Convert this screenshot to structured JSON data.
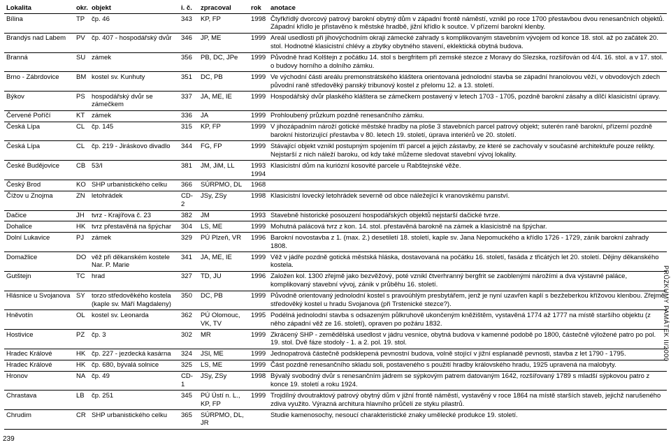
{
  "pageNumber": "239",
  "sideLabel": "PRŮZKUMY PAMÁTEK II/2000",
  "columns": [
    "Lokalita",
    "okr.",
    "objekt",
    "i. č.",
    "zpracoval",
    "rok",
    "anotace"
  ],
  "rows": [
    {
      "lokalita": "Bílina",
      "okr": "TP",
      "objekt": "čp. 46",
      "ic": "343",
      "zprac": "KP, FP",
      "rok": "1998",
      "anot": "Čtyřkřídlý dvorcový patrový barokní obytný dům v západní frontě náměstí, vznikl po roce 1700 přestavbou dvou renesančních objektů. Západní křídlo je přistavěno k městské hradbě, jižní křídlo k soutce. V přízemí barokní klenby."
    },
    {
      "lokalita": "Brandýs nad Labem",
      "okr": "PV",
      "objekt": "čp. 407 - hospodářský dvůr",
      "ic": "346",
      "zprac": "JP, ME",
      "rok": "1999",
      "anot": "Areál usedlosti při jihovýchodním okraji zámecké zahrady s komplikovaným stavebním vývojem od konce 18. stol. až po začátek 20. stol. Hodnotné klasicistní chlévy a zbytky obytného stavení, eklektická obytná budova."
    },
    {
      "lokalita": "Branná",
      "okr": "SU",
      "objekt": "zámek",
      "ic": "356",
      "zprac": "PB, DC, JPe",
      "rok": "1999",
      "anot": "Původně hrad Kolštejn z počátku 14. stol s bergfritem při zemské stezce z Moravy do Slezska, rozšiřován od 4/4. 16. stol. a v 17. stol. o budovy horního a dolního zámku."
    },
    {
      "lokalita": "Brno - Zábrdovice",
      "okr": "BM",
      "objekt": "kostel sv. Kunhuty",
      "ic": "351",
      "zprac": "DC, PB",
      "rok": "1999",
      "anot": "Ve východní části areálu premonstrátského kláštera orientovaná jednolodní stavba se západní hranolovou věží, v obvodových zdech původní raně středověký panský tribunový kostel z přelomu 12. a 13. století."
    },
    {
      "lokalita": "Býkov",
      "okr": "PS",
      "objekt": "hospodářský dvůr se zámečkem",
      "ic": "337",
      "zprac": "JA, ME, IE",
      "rok": "1999",
      "anot": "Hospodářský dvůr plaského kláštera se zámečkem postavený v letech 1703 - 1705, pozdně barokní zásahy a dílčí klasicistní úpravy."
    },
    {
      "lokalita": "Červené Poříčí",
      "okr": "KT",
      "objekt": "zámek",
      "ic": "336",
      "zprac": "JA",
      "rok": "1999",
      "anot": "Prohloubený průzkum pozdně renesančního zámku."
    },
    {
      "lokalita": "Česká Lípa",
      "okr": "CL",
      "objekt": "čp. 145",
      "ic": "315",
      "zprac": "KP, FP",
      "rok": "1999",
      "anot": "V jihozápadním nároží gotické městské hradby na ploše 3 stavebních parcel patrový objekt; suterén raně barokní, přízemí pozdně barokní historizující přestavba v 80. letech 19. století, úprava interiérů ve 20. století."
    },
    {
      "lokalita": "Česká Lípa",
      "okr": "CL",
      "objekt": "čp. 219 - Jiráskovo divadlo",
      "ic": "344",
      "zprac": "FG, FP",
      "rok": "1999",
      "anot": "Stávající objekt vznikl postupným spojením tří parcel a jejich zástavby, ze které se zachovaly v současné architektuře pouze relikty. Nejstarší z nich náleží baroku, od kdy také můžeme sledovat stavební vývoj lokality."
    },
    {
      "lokalita": "České Budějovice",
      "okr": "CB",
      "objekt": "53/I",
      "ic": "381",
      "zprac": "JM, JiM, LL",
      "rok": "1993  1994",
      "anot": "Klasicistní dům na kuriózní kosovité parcele u Rabštejnské věže."
    },
    {
      "lokalita": "Český Brod",
      "okr": "KO",
      "objekt": "SHP urbanistického celku",
      "ic": "366",
      "zprac": "SÚRPMO, DL",
      "rok": "1968",
      "anot": ""
    },
    {
      "lokalita": "Čížov u Znojma",
      "okr": "ZN",
      "objekt": "letohrádek",
      "ic": "CD-2",
      "zprac": "JSy, ZSy",
      "rok": "1998",
      "anot": "Klasicistní lovecký letohrádek severně od obce náležející k vranovskému panství."
    },
    {
      "lokalita": "Dačice",
      "okr": "JH",
      "objekt": "tvrz - Krajířova č. 23",
      "ic": "382",
      "zprac": "JM",
      "rok": "1993",
      "anot": "Stavebně historické posouzení hospodářských objektů nejstarší dačické tvrze."
    },
    {
      "lokalita": "Dohalice",
      "okr": "HK",
      "objekt": "tvrz přestavěná na špýchar",
      "ic": "304",
      "zprac": "LS, ME",
      "rok": "1999",
      "anot": "Mohutná palácová tvrz z kon. 14. stol. přestavěná barokně na zámek a klasicistně na špýchar."
    },
    {
      "lokalita": "Dolní Lukavice",
      "okr": "PJ",
      "objekt": "zámek",
      "ic": "329",
      "zprac": "PÚ Plzeň, VR",
      "rok": "1996",
      "anot": "Barokní novostavba z 1. (max. 2.) desetiletí 18. století, kaple sv. Jana Nepomuckého a křídlo 1726 - 1729, zánik barokní zahrady 1808."
    },
    {
      "lokalita": "Domažlice",
      "okr": "DO",
      "objekt": "věž při děkanském kostele Nar. P. Marie",
      "ic": "341",
      "zprac": "JA, ME, IE",
      "rok": "1999",
      "anot": "Věž v jádře pozdně gotická městská hláska, dostavovaná na počátku 16. století, fasáda z třicátých let 20. století. Dějiny děkanského kostela."
    },
    {
      "lokalita": "Gutštejn",
      "okr": "TC",
      "objekt": "hrad",
      "ic": "327",
      "zprac": "TD, JU",
      "rok": "1996",
      "anot": "Založen kol. 1300 zřejmě jako bezvěžový, poté vznikl čtverhranný bergfrit se zaoblenými nárožími a dva výstavné paláce, komplikovaný stavební vývoj, zánik v průběhu 16. století."
    },
    {
      "lokalita": "Hlásnice u Svojanova",
      "okr": "SY",
      "objekt": "torzo středověkého kostela (kaple sv. Máří Magdaleny)",
      "ic": "350",
      "zprac": "DC, PB",
      "rok": "1999",
      "anot": "Původně orientovaný jednolodní kostel s pravoúhlým presbytářem, jenž je nyní uzavřen kaplí s bezžeberkou křížovou klenbou. Zřejmě středověký kostel u hradu Svojanova (při Trstenické stezce?)."
    },
    {
      "lokalita": "Hněvotín",
      "okr": "OL",
      "objekt": "kostel sv. Leonarda",
      "ic": "362",
      "zprac": "PÚ Olomouc, VK, TV",
      "rok": "1995",
      "anot": "Podélná jednolodní stavba s odsazeným půlkruhově ukončeným kněžištěm, vystavěná 1774 až 1777 na místě staršího objektu (z něho západní věž ze 16. století), opraven po požáru 1832."
    },
    {
      "lokalita": "Hostivice",
      "okr": "PZ",
      "objekt": "čp. 3",
      "ic": "302",
      "zprac": "MR",
      "rok": "1999",
      "anot": "Zkrácený SHP - zemědělská usedlost v jádru vesnice, obytná budova v kamenné podobě po 1800, částečně výložené patro po pol. 19. stol. Dvě fáze stodoly - 1. a 2. pol. 19. stol."
    },
    {
      "lokalita": "Hradec Králové",
      "okr": "HK",
      "objekt": "čp. 227 - jezdecká kasárna",
      "ic": "324",
      "zprac": "JSl, ME",
      "rok": "1999",
      "anot": "Jednopatrová částečně podsklepená pevnostní budova, volně stojící v jižní esplanadě pevnosti, stavba z let 1790 - 1795."
    },
    {
      "lokalita": "Hradec Králové",
      "okr": "HK",
      "objekt": "čp. 680, bývalá solnice",
      "ic": "325",
      "zprac": "LS, ME",
      "rok": "1999",
      "anot": "Část pozdně renesančního skladu soli, postaveného s použití hradby královského hradu, 1925 upravená na malobyty."
    },
    {
      "lokalita": "Hronov",
      "okr": "NA",
      "objekt": "čp. 49",
      "ic": "CD-1",
      "zprac": "JSy, ZSy",
      "rok": "1998",
      "anot": "Bývalý svobodný dvůr s renesančním jádrem se sýpkovým patrem datovaným 1642, rozšířovaný 1789 s mladší sýpkovou patro z konce 19. století a roku 1924."
    },
    {
      "lokalita": "Chrastava",
      "okr": "LB",
      "objekt": "čp. 251",
      "ic": "345",
      "zprac": "PÚ Ústí n. L., KP, FP",
      "rok": "1999",
      "anot": "Trojdílný dvoutraktový patrový obytný dům v jižní frontě náměstí, vystavěný v roce 1864 na místě starších staveb, jejichž narušeného zdiva využito. Výrazná architura hlavního průčelí ze styku pilastrů."
    },
    {
      "lokalita": "Chrudim",
      "okr": "CR",
      "objekt": "SHP urbanistického celku",
      "ic": "365",
      "zprac": "SÚRPMO, DL, JR",
      "rok": "",
      "anot": "Studie kamenosochy, nesoucí charakteristické znaky umělecké produkce 19. století."
    }
  ]
}
